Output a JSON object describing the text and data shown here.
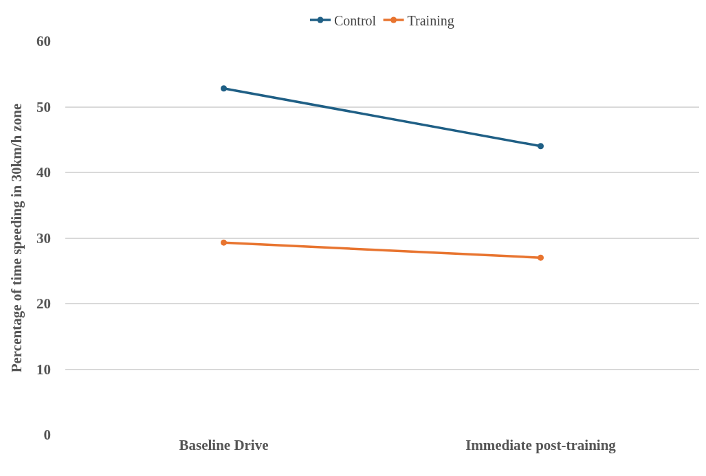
{
  "chart_data": {
    "type": "line",
    "ylabel": "Percentage of time speeding in 30km/h zone",
    "categories": [
      "Baseline Drive",
      "Immediate post-training"
    ],
    "series": [
      {
        "name": "Control",
        "color": "#1f5f85",
        "values": [
          52.8,
          44.0
        ]
      },
      {
        "name": "Training",
        "color": "#e8742f",
        "values": [
          29.3,
          27.0
        ]
      }
    ],
    "ylim": [
      0,
      60
    ],
    "yticks": [
      0,
      10,
      20,
      30,
      40,
      50,
      60
    ],
    "grid": "y",
    "legend": "top",
    "marker": "circle",
    "line_style": "solid"
  }
}
